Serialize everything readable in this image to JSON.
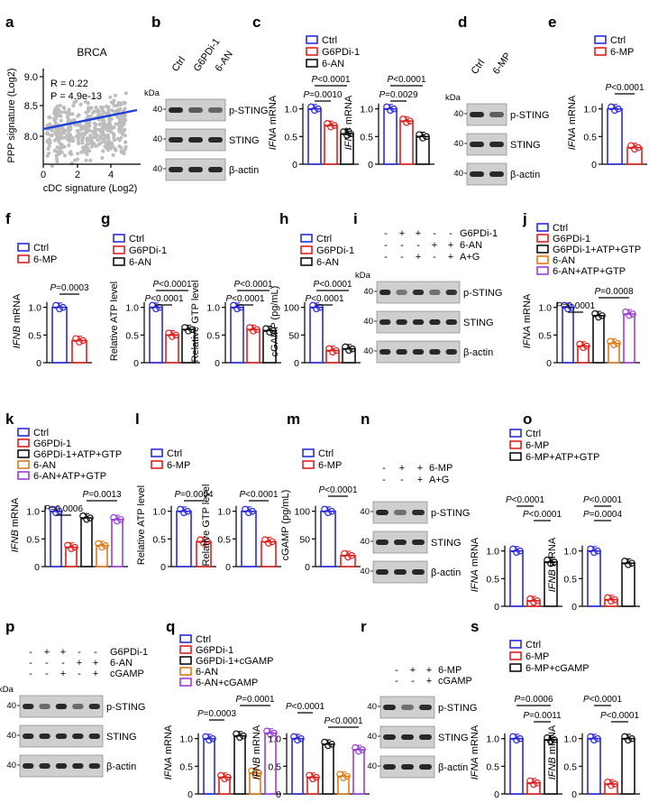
{
  "colors": {
    "ctrl": "#2b2bdc",
    "g6pdi": "#e02020",
    "an6": "#111111",
    "orange": "#e07b1a",
    "purple": "#9b3fd6",
    "blue_line": "#1a3fd8",
    "scatter": "#bdbdbd"
  },
  "legends": {
    "c": [
      "Ctrl",
      "G6PDi-1",
      "6-AN"
    ],
    "e": [
      "Ctrl",
      "6-MP"
    ],
    "j": [
      "Ctrl",
      "G6PDi-1",
      "G6PDi-1+ATP+GTP",
      "6-AN",
      "6-AN+ATP+GTP"
    ],
    "o": [
      "Ctrl",
      "6-MP",
      "6-MP+ATP+GTP"
    ],
    "q": [
      "Ctrl",
      "G6PDi-1",
      "G6PDi-1+cGAMP",
      "6-AN",
      "6-AN+cGAMP"
    ],
    "s": [
      "Ctrl",
      "6-MP",
      "6-MP+cGAMP"
    ]
  },
  "blot": {
    "kda": "kDa",
    "p_sting": "p-STING",
    "sting": "STING",
    "actin": "β-actin",
    "mw": "40"
  },
  "panels": {
    "a": {
      "letter": "a",
      "title": "BRCA",
      "r": "R = 0.22",
      "p": "P = 4.9e-13",
      "xlabel": "cDC signature (Log2)",
      "ylabel": "PPP signature (Log2)",
      "yticks": [
        "8.0",
        "8.5",
        "9.0"
      ],
      "xticks": [
        "0",
        "2",
        "4"
      ]
    },
    "b": {
      "letter": "b",
      "lanes": [
        "Ctrl",
        "G6PDi-1",
        "6-AN"
      ]
    },
    "c": {
      "letter": "c",
      "p1": "P<0.0001",
      "p2": "P=0.0010",
      "p3": "P<0.0001",
      "p4": "P=0.0029",
      "ylabel1": "IFNA mRNA",
      "ylabel2": "IFNB mRNA"
    },
    "d": {
      "letter": "d",
      "lanes": [
        "Ctrl",
        "6-MP"
      ]
    },
    "e": {
      "letter": "e",
      "p1": "P<0.0001",
      "ylabel": "IFNA mRNA"
    },
    "f": {
      "letter": "f",
      "p1": "P=0.0003",
      "ylabel": "IFNB mRNA"
    },
    "g": {
      "letter": "g",
      "p1": "P<0.0001",
      "p2": "P<0.0001",
      "p3": "P<0.0001",
      "p4": "P<0.0001",
      "ylabel1": "Relative ATP level",
      "ylabel2": "Relative GTP level"
    },
    "h": {
      "letter": "h",
      "p1": "P<0.0001",
      "p2": "P<0.0001",
      "ylabel": "cGAMP (pg/mL)"
    },
    "i": {
      "letter": "i",
      "rows": [
        "G6PDi-1",
        "6-AN",
        "A+G"
      ],
      "signs": [
        [
          "-",
          "+",
          "+",
          "-",
          "-"
        ],
        [
          "-",
          "-",
          "-",
          "+",
          "+"
        ],
        [
          "-",
          "-",
          "+",
          "-",
          "+"
        ]
      ]
    },
    "j": {
      "letter": "j",
      "p1": "P=0.0008",
      "p2": "P=0.0001",
      "ylabel": "IFNA mRNA"
    },
    "k": {
      "letter": "k",
      "p1": "P=0.0013",
      "p2": "P=0.0006",
      "ylabel": "IFNB mRNA"
    },
    "l": {
      "letter": "l",
      "p1": "P=0.0004",
      "p2": "P<0.0001",
      "ylabel1": "Relative ATP level",
      "ylabel2": "Relative GTP level"
    },
    "m": {
      "letter": "m",
      "p1": "P<0.0001",
      "ylabel": "cGAMP (pg/mL)"
    },
    "n": {
      "letter": "n",
      "rows": [
        "6-MP",
        "A+G"
      ],
      "signs": [
        [
          "-",
          "+",
          "+"
        ],
        [
          "-",
          "-",
          "+"
        ]
      ]
    },
    "o": {
      "letter": "o",
      "p1": "P<0.0001",
      "p2": "P<0.0001",
      "p3": "P<0.0001",
      "p4": "P=0.0004",
      "ylabel1": "IFNA mRNA",
      "ylabel2": "IFNB mRNA"
    },
    "p": {
      "letter": "p",
      "rows": [
        "G6PDi-1",
        "6-AN",
        "cGAMP"
      ],
      "signs": [
        [
          "-",
          "+",
          "+",
          "-",
          "-"
        ],
        [
          "-",
          "-",
          "-",
          "+",
          "+"
        ],
        [
          "-",
          "-",
          "+",
          "-",
          "+"
        ]
      ]
    },
    "q": {
      "letter": "q",
      "p1": "P=0.0001",
      "p2": "P=0.0003",
      "p3": "P<0.0001",
      "p4": "P<0.0001",
      "ylabel1": "IFNA mRNA",
      "ylabel2": "IFNB mRNA"
    },
    "r": {
      "letter": "r",
      "rows": [
        "6-MP",
        "cGAMP"
      ],
      "signs": [
        [
          "-",
          "+",
          "+"
        ],
        [
          "-",
          "-",
          "+"
        ]
      ]
    },
    "s": {
      "letter": "s",
      "p1": "P=0.0006",
      "p2": "P=0.0011",
      "p3": "P<0.0001",
      "p4": "P<0.0001",
      "ylabel1": "IFNA mRNA",
      "ylabel2": "IFNB mRNA"
    }
  },
  "chart_data": [
    {
      "panel": "a",
      "type": "scatter",
      "title": "BRCA",
      "xlabel": "cDC signature (Log2)",
      "ylabel": "PPP signature (Log2)",
      "xlim": [
        0,
        5.5
      ],
      "ylim": [
        7.6,
        9.2
      ],
      "regression": {
        "x": [
          0,
          5.5
        ],
        "y": [
          8.15,
          8.45
        ]
      }
    },
    {
      "panel": "c",
      "type": "bar",
      "ylabel": "IFNA mRNA",
      "ylim": [
        0,
        1.5
      ],
      "yticks": [
        0,
        0.5,
        1.0
      ],
      "categories": [
        "Ctrl",
        "G6PDi-1",
        "6-AN"
      ],
      "values": [
        1.0,
        0.7,
        0.55
      ]
    },
    {
      "panel": "c",
      "type": "bar",
      "ylabel": "IFNB mRNA",
      "ylim": [
        0,
        1.5
      ],
      "yticks": [
        0,
        0.5,
        1.0
      ],
      "categories": [
        "Ctrl",
        "G6PDi-1",
        "6-AN"
      ],
      "values": [
        1.0,
        0.78,
        0.5
      ]
    },
    {
      "panel": "e",
      "type": "bar",
      "ylabel": "IFNA mRNA",
      "ylim": [
        0,
        1.5
      ],
      "yticks": [
        0,
        0.5,
        1.0
      ],
      "categories": [
        "Ctrl",
        "6-MP"
      ],
      "values": [
        1.0,
        0.3
      ]
    },
    {
      "panel": "f",
      "type": "bar",
      "ylabel": "IFNB mRNA",
      "ylim": [
        0,
        1.5
      ],
      "yticks": [
        0,
        0.5,
        1.0
      ],
      "categories": [
        "Ctrl",
        "6-MP"
      ],
      "values": [
        1.0,
        0.4
      ]
    },
    {
      "panel": "g",
      "type": "bar",
      "ylabel": "Relative ATP level",
      "ylim": [
        0,
        1.5
      ],
      "yticks": [
        0,
        0.5,
        1.0
      ],
      "categories": [
        "Ctrl",
        "G6PDi-1",
        "6-AN"
      ],
      "values": [
        1.0,
        0.5,
        0.6
      ]
    },
    {
      "panel": "g",
      "type": "bar",
      "ylabel": "Relative GTP level",
      "ylim": [
        0,
        1.5
      ],
      "yticks": [
        0,
        0.5,
        1.0
      ],
      "categories": [
        "Ctrl",
        "G6PDi-1",
        "6-AN"
      ],
      "values": [
        1.0,
        0.6,
        0.58
      ]
    },
    {
      "panel": "h",
      "type": "bar",
      "ylabel": "cGAMP (pg/mL)",
      "ylim": [
        0,
        150
      ],
      "yticks": [
        0,
        50,
        100
      ],
      "categories": [
        "Ctrl",
        "G6PDi-1",
        "6-AN"
      ],
      "values": [
        100,
        22,
        25
      ]
    },
    {
      "panel": "j",
      "type": "bar",
      "ylabel": "IFNA mRNA",
      "ylim": [
        0,
        1.5
      ],
      "yticks": [
        0,
        0.5,
        1.0
      ],
      "categories": [
        "Ctrl",
        "G6PDi-1",
        "G6PDi-1+ATP+GTP",
        "6-AN",
        "6-AN+ATP+GTP"
      ],
      "values": [
        1.0,
        0.3,
        0.85,
        0.35,
        0.88
      ]
    },
    {
      "panel": "k",
      "type": "bar",
      "ylabel": "IFNB mRNA",
      "ylim": [
        0,
        1.5
      ],
      "yticks": [
        0,
        0.5,
        1.0
      ],
      "categories": [
        "Ctrl",
        "G6PDi-1",
        "G6PDi-1+ATP+GTP",
        "6-AN",
        "6-AN+ATP+GTP"
      ],
      "values": [
        1.0,
        0.35,
        0.88,
        0.38,
        0.85
      ]
    },
    {
      "panel": "l",
      "type": "bar",
      "ylabel": "Relative ATP level",
      "ylim": [
        0,
        1.5
      ],
      "yticks": [
        0,
        0.5,
        1.0
      ],
      "categories": [
        "Ctrl",
        "6-MP"
      ],
      "values": [
        1.0,
        0.45
      ]
    },
    {
      "panel": "l",
      "type": "bar",
      "ylabel": "Relative GTP level",
      "ylim": [
        0,
        1.5
      ],
      "yticks": [
        0,
        0.5,
        1.0
      ],
      "categories": [
        "Ctrl",
        "6-MP"
      ],
      "values": [
        1.0,
        0.45
      ]
    },
    {
      "panel": "m",
      "type": "bar",
      "ylabel": "cGAMP (pg/mL)",
      "ylim": [
        0,
        150
      ],
      "yticks": [
        0,
        50,
        100
      ],
      "categories": [
        "Ctrl",
        "6-MP"
      ],
      "values": [
        100,
        20
      ]
    },
    {
      "panel": "o",
      "type": "bar",
      "ylabel": "IFNA mRNA",
      "ylim": [
        0,
        1.5
      ],
      "yticks": [
        0,
        0.5,
        1.0
      ],
      "categories": [
        "Ctrl",
        "6-MP",
        "6-MP+ATP+GTP"
      ],
      "values": [
        1.0,
        0.1,
        0.8
      ]
    },
    {
      "panel": "o",
      "type": "bar",
      "ylabel": "IFNB mRNA",
      "ylim": [
        0,
        1.5
      ],
      "yticks": [
        0,
        0.5,
        1.0
      ],
      "categories": [
        "Ctrl",
        "6-MP",
        "6-MP+ATP+GTP"
      ],
      "values": [
        1.0,
        0.12,
        0.78
      ]
    },
    {
      "panel": "q",
      "type": "bar",
      "ylabel": "IFNA mRNA",
      "ylim": [
        0,
        1.5
      ],
      "yticks": [
        0,
        0.5,
        1.0
      ],
      "categories": [
        "Ctrl",
        "G6PDi-1",
        "G6PDi-1+cGAMP",
        "6-AN",
        "6-AN+cGAMP"
      ],
      "values": [
        1.0,
        0.3,
        1.05,
        0.38,
        1.1
      ]
    },
    {
      "panel": "q",
      "type": "bar",
      "ylabel": "IFNB mRNA",
      "ylim": [
        0,
        1.5
      ],
      "yticks": [
        0,
        0.5,
        1.0
      ],
      "categories": [
        "Ctrl",
        "G6PDi-1",
        "G6PDi-1+cGAMP",
        "6-AN",
        "6-AN+cGAMP"
      ],
      "values": [
        1.0,
        0.3,
        0.9,
        0.32,
        0.8
      ]
    },
    {
      "panel": "s",
      "type": "bar",
      "ylabel": "IFNA mRNA",
      "ylim": [
        0,
        1.5
      ],
      "yticks": [
        0,
        0.5,
        1.0
      ],
      "categories": [
        "Ctrl",
        "6-MP",
        "6-MP+cGAMP"
      ],
      "values": [
        1.0,
        0.2,
        0.98
      ]
    },
    {
      "panel": "s",
      "type": "bar",
      "ylabel": "IFNB mRNA",
      "ylim": [
        0,
        1.5
      ],
      "yticks": [
        0,
        0.5,
        1.0
      ],
      "categories": [
        "Ctrl",
        "6-MP",
        "6-MP+cGAMP"
      ],
      "values": [
        1.0,
        0.18,
        1.0
      ]
    }
  ]
}
